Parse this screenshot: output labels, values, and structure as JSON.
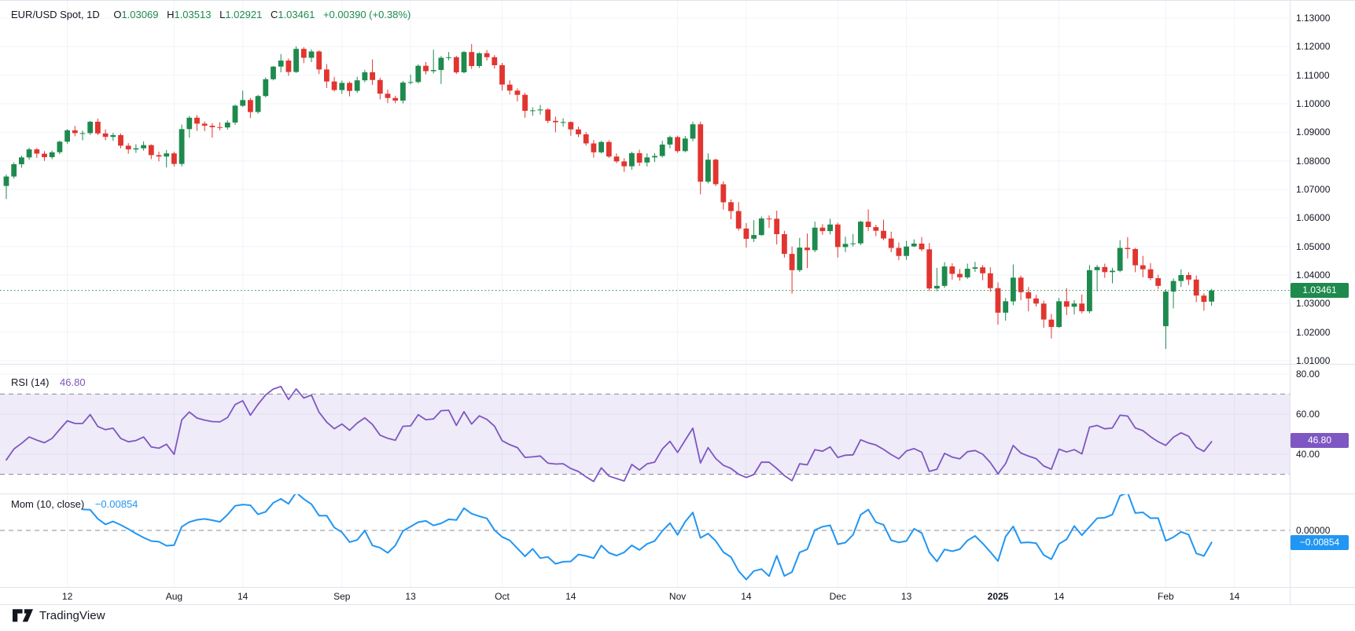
{
  "header": {
    "symbol": "EUR/USD Spot, 1D",
    "o_label": "O",
    "o": "1.03069",
    "h_label": "H",
    "h": "1.03513",
    "l_label": "L",
    "l": "1.02921",
    "c_label": "C",
    "c": "1.03461",
    "change": "+0.00390 (+0.38%)"
  },
  "rsi_legend": {
    "name": "RSI (14)",
    "value": "46.80"
  },
  "mom_legend": {
    "name": "Mom (10, close)",
    "value": "−0.00854"
  },
  "attribution": {
    "text": "TradingView"
  },
  "colors": {
    "up": "#1e8a4e",
    "down": "#e13530",
    "rsi": "#7e57c2",
    "mom": "#2196f3",
    "grid": "#f0f3fa",
    "separator": "#e0e3eb",
    "text": "#131722",
    "band_fill": "rgba(126,87,194,0.12)",
    "dash": "#8a8e99",
    "price_line": "#1e8a4e",
    "last_price_badge": "#1e8a4e",
    "rsi_badge": "#7e57c2",
    "mom_badge": "#2196f3"
  },
  "chart_data": {
    "type": "candlestick",
    "title": "EUR/USD Spot, 1D",
    "symbol": "EUR/USD",
    "interval": "1D",
    "ylim": [
      1.01,
      1.1305
    ],
    "grid": true,
    "last_price": {
      "text": "1.03461",
      "value": 1.03461
    },
    "price_ticks": [
      {
        "text": "1.13000",
        "value": 1.13
      },
      {
        "text": "1.12000",
        "value": 1.12
      },
      {
        "text": "1.11000",
        "value": 1.11
      },
      {
        "text": "1.10000",
        "value": 1.1
      },
      {
        "text": "1.09000",
        "value": 1.09
      },
      {
        "text": "1.08000",
        "value": 1.08
      },
      {
        "text": "1.07000",
        "value": 1.07
      },
      {
        "text": "1.06000",
        "value": 1.06
      },
      {
        "text": "1.05000",
        "value": 1.05
      },
      {
        "text": "1.04000",
        "value": 1.04
      },
      {
        "text": "1.03000",
        "value": 1.03
      },
      {
        "text": "1.02000",
        "value": 1.02
      },
      {
        "text": "1.01000",
        "value": 1.01
      }
    ],
    "time_ticks": [
      {
        "text": "12",
        "index": 8,
        "bold": false
      },
      {
        "text": "Aug",
        "index": 22,
        "bold": false
      },
      {
        "text": "14",
        "index": 31,
        "bold": false
      },
      {
        "text": "Sep",
        "index": 44,
        "bold": false
      },
      {
        "text": "13",
        "index": 53,
        "bold": false
      },
      {
        "text": "Oct",
        "index": 65,
        "bold": false
      },
      {
        "text": "14",
        "index": 74,
        "bold": false
      },
      {
        "text": "Nov",
        "index": 88,
        "bold": false
      },
      {
        "text": "14",
        "index": 97,
        "bold": false
      },
      {
        "text": "Dec",
        "index": 109,
        "bold": false
      },
      {
        "text": "13",
        "index": 118,
        "bold": false
      },
      {
        "text": "2025",
        "index": 130,
        "bold": true
      },
      {
        "text": "14",
        "index": 138,
        "bold": false
      },
      {
        "text": "Feb",
        "index": 152,
        "bold": false
      },
      {
        "text": "14",
        "index": 161,
        "bold": false
      }
    ],
    "indicators": [
      {
        "name": "RSI (14)",
        "type": "line",
        "period": 14,
        "last_value_text": "46.80",
        "last_value": 46.8,
        "color": "#7e57c2",
        "overbought": 70,
        "oversold": 30,
        "ticks": [
          {
            "text": "80.00",
            "value": 80
          },
          {
            "text": "60.00",
            "value": 60
          },
          {
            "text": "40.00",
            "value": 40
          }
        ]
      },
      {
        "name": "Mom (10, close)",
        "type": "line",
        "period": 10,
        "last_value_text": "−0.00854",
        "last_value": -0.00854,
        "color": "#2196f3",
        "ticks": [
          {
            "text": "0.00000",
            "value": 0
          }
        ]
      }
    ],
    "ohlc": [
      [
        1.0712,
        1.0752,
        1.0666,
        1.0745
      ],
      [
        1.0745,
        1.0795,
        1.0738,
        1.0788
      ],
      [
        1.0788,
        1.0818,
        1.0776,
        1.0812
      ],
      [
        1.0812,
        1.0846,
        1.0804,
        1.084
      ],
      [
        1.084,
        1.0845,
        1.081,
        1.0825
      ],
      [
        1.0825,
        1.0834,
        1.08,
        1.0813
      ],
      [
        1.0813,
        1.0836,
        1.0806,
        1.083
      ],
      [
        1.083,
        1.0871,
        1.0823,
        1.0867
      ],
      [
        1.0867,
        1.0911,
        1.086,
        1.0907
      ],
      [
        1.0907,
        1.0922,
        1.0886,
        1.0897
      ],
      [
        1.0897,
        1.0906,
        1.0872,
        1.0897
      ],
      [
        1.0897,
        1.094,
        1.0891,
        1.0937
      ],
      [
        1.0937,
        1.0948,
        1.089,
        1.0896
      ],
      [
        1.0896,
        1.091,
        1.0872,
        1.0884
      ],
      [
        1.0884,
        1.0898,
        1.087,
        1.089
      ],
      [
        1.089,
        1.0896,
        1.0844,
        1.0853
      ],
      [
        1.0853,
        1.0862,
        1.0825,
        1.084
      ],
      [
        1.084,
        1.0858,
        1.0828,
        1.0844
      ],
      [
        1.0844,
        1.0868,
        1.0836,
        1.0855
      ],
      [
        1.0855,
        1.0858,
        1.0806,
        1.082
      ],
      [
        1.082,
        1.0832,
        1.0798,
        1.0815
      ],
      [
        1.0815,
        1.0838,
        1.0777,
        1.0826
      ],
      [
        1.0826,
        1.0832,
        1.078,
        1.0789
      ],
      [
        1.0789,
        1.0927,
        1.078,
        1.0911
      ],
      [
        1.0911,
        1.0957,
        1.0881,
        1.0951
      ],
      [
        1.0951,
        1.096,
        1.0905,
        1.093
      ],
      [
        1.093,
        1.0938,
        1.0904,
        1.0923
      ],
      [
        1.0923,
        1.0932,
        1.0881,
        1.0918
      ],
      [
        1.0918,
        1.0935,
        1.0907,
        1.0917
      ],
      [
        1.0917,
        1.0942,
        1.0909,
        1.0934
      ],
      [
        1.0934,
        1.0997,
        1.0926,
        1.0993
      ],
      [
        1.0993,
        1.1046,
        1.0989,
        1.1013
      ],
      [
        1.1013,
        1.102,
        1.095,
        1.0971
      ],
      [
        1.0971,
        1.1031,
        1.0965,
        1.1027
      ],
      [
        1.1027,
        1.1092,
        1.1022,
        1.1086
      ],
      [
        1.1086,
        1.1132,
        1.1082,
        1.113
      ],
      [
        1.113,
        1.1174,
        1.111,
        1.1151
      ],
      [
        1.1151,
        1.1158,
        1.1098,
        1.1111
      ],
      [
        1.1111,
        1.1201,
        1.1108,
        1.1192
      ],
      [
        1.1192,
        1.1198,
        1.1142,
        1.1161
      ],
      [
        1.1161,
        1.119,
        1.1146,
        1.1183
      ],
      [
        1.1183,
        1.1187,
        1.1104,
        1.112
      ],
      [
        1.112,
        1.1139,
        1.1055,
        1.1078
      ],
      [
        1.1078,
        1.1094,
        1.1043,
        1.1048
      ],
      [
        1.1048,
        1.1081,
        1.1034,
        1.1073
      ],
      [
        1.1073,
        1.1078,
        1.1026,
        1.1045
      ],
      [
        1.1045,
        1.1094,
        1.1038,
        1.1082
      ],
      [
        1.1082,
        1.1119,
        1.1075,
        1.111
      ],
      [
        1.111,
        1.1155,
        1.1066,
        1.1083
      ],
      [
        1.1083,
        1.1091,
        1.1015,
        1.1035
      ],
      [
        1.1035,
        1.105,
        1.1002,
        1.102
      ],
      [
        1.102,
        1.1028,
        1.1002,
        1.1011
      ],
      [
        1.1011,
        1.108,
        1.1001,
        1.1074
      ],
      [
        1.1074,
        1.1102,
        1.1068,
        1.1076
      ],
      [
        1.1076,
        1.1138,
        1.1071,
        1.1133
      ],
      [
        1.1133,
        1.1146,
        1.1103,
        1.1114
      ],
      [
        1.1114,
        1.1189,
        1.1106,
        1.1118
      ],
      [
        1.1118,
        1.1167,
        1.1069,
        1.1161
      ],
      [
        1.1161,
        1.1181,
        1.1152,
        1.1163
      ],
      [
        1.1163,
        1.1168,
        1.1104,
        1.111
      ],
      [
        1.111,
        1.1185,
        1.1106,
        1.1181
      ],
      [
        1.1181,
        1.1209,
        1.1122,
        1.1132
      ],
      [
        1.1132,
        1.118,
        1.1125,
        1.1177
      ],
      [
        1.1177,
        1.1188,
        1.1151,
        1.1163
      ],
      [
        1.1163,
        1.117,
        1.1123,
        1.1135
      ],
      [
        1.1135,
        1.1143,
        1.1046,
        1.1067
      ],
      [
        1.1067,
        1.1082,
        1.1032,
        1.1046
      ],
      [
        1.1046,
        1.1054,
        1.1008,
        1.1031
      ],
      [
        1.1031,
        1.1038,
        1.0951,
        1.0975
      ],
      [
        1.0975,
        1.0987,
        1.0958,
        1.0977
      ],
      [
        1.0977,
        1.0996,
        1.0962,
        1.098
      ],
      [
        1.098,
        1.0984,
        1.0932,
        1.094
      ],
      [
        1.094,
        1.0955,
        1.09,
        1.0935
      ],
      [
        1.0935,
        1.0949,
        1.092,
        1.0936
      ],
      [
        1.0936,
        1.0938,
        1.0888,
        1.091
      ],
      [
        1.091,
        1.092,
        1.0883,
        1.0893
      ],
      [
        1.0893,
        1.0901,
        1.0853,
        1.0861
      ],
      [
        1.0861,
        1.0873,
        1.0811,
        1.083
      ],
      [
        1.083,
        1.087,
        1.0826,
        1.0866
      ],
      [
        1.0866,
        1.0872,
        1.081,
        1.0815
      ],
      [
        1.0815,
        1.0826,
        1.0792,
        1.0798
      ],
      [
        1.0798,
        1.0809,
        1.0761,
        1.0781
      ],
      [
        1.0781,
        1.0832,
        1.0769,
        1.0827
      ],
      [
        1.0827,
        1.0839,
        1.0782,
        1.0794
      ],
      [
        1.0794,
        1.0826,
        1.078,
        1.0812
      ],
      [
        1.0812,
        1.0827,
        1.0796,
        1.0817
      ],
      [
        1.0817,
        1.087,
        1.0812,
        1.0857
      ],
      [
        1.0857,
        1.0888,
        1.0844,
        1.0883
      ],
      [
        1.0883,
        1.0888,
        1.0828,
        1.0834
      ],
      [
        1.0834,
        1.0887,
        1.083,
        1.0878
      ],
      [
        1.0878,
        1.0937,
        1.0869,
        1.0928
      ],
      [
        1.0928,
        1.0937,
        1.0683,
        1.0727
      ],
      [
        1.0727,
        1.0826,
        1.0721,
        1.0804
      ],
      [
        1.0804,
        1.0808,
        1.0711,
        1.0718
      ],
      [
        1.0718,
        1.0728,
        1.0629,
        1.0655
      ],
      [
        1.0655,
        1.0665,
        1.0595,
        1.0624
      ],
      [
        1.0624,
        1.0655,
        1.0555,
        1.0563
      ],
      [
        1.0563,
        1.0582,
        1.0496,
        1.0527
      ],
      [
        1.0527,
        1.0592,
        1.0516,
        1.054
      ],
      [
        1.054,
        1.0605,
        1.0538,
        1.0598
      ],
      [
        1.0598,
        1.0609,
        1.0565,
        1.0597
      ],
      [
        1.0597,
        1.0625,
        1.0507,
        1.0543
      ],
      [
        1.0543,
        1.0555,
        1.0461,
        1.0474
      ],
      [
        1.0474,
        1.05,
        1.0335,
        1.0417
      ],
      [
        1.0417,
        1.053,
        1.0411,
        1.0496
      ],
      [
        1.0496,
        1.0545,
        1.0424,
        1.0487
      ],
      [
        1.0487,
        1.0587,
        1.048,
        1.0566
      ],
      [
        1.0566,
        1.0578,
        1.0541,
        1.0554
      ],
      [
        1.0554,
        1.0597,
        1.0542,
        1.0577
      ],
      [
        1.0577,
        1.0583,
        1.0461,
        1.0498
      ],
      [
        1.0498,
        1.0534,
        1.048,
        1.0509
      ],
      [
        1.0509,
        1.0544,
        1.05,
        1.0511
      ],
      [
        1.0511,
        1.059,
        1.0505,
        1.0587
      ],
      [
        1.0587,
        1.063,
        1.0554,
        1.0568
      ],
      [
        1.0568,
        1.0576,
        1.0536,
        1.0555
      ],
      [
        1.0555,
        1.0594,
        1.0522,
        1.0528
      ],
      [
        1.0528,
        1.0552,
        1.048,
        1.0495
      ],
      [
        1.0495,
        1.0514,
        1.0452,
        1.0467
      ],
      [
        1.0467,
        1.052,
        1.0453,
        1.05
      ],
      [
        1.05,
        1.0525,
        1.0498,
        1.051
      ],
      [
        1.051,
        1.0533,
        1.0483,
        1.049
      ],
      [
        1.049,
        1.0512,
        1.0344,
        1.0353
      ],
      [
        1.0353,
        1.0425,
        1.0343,
        1.0362
      ],
      [
        1.0362,
        1.0445,
        1.0355,
        1.043
      ],
      [
        1.043,
        1.0441,
        1.0384,
        1.0404
      ],
      [
        1.0404,
        1.0421,
        1.038,
        1.0392
      ],
      [
        1.0392,
        1.044,
        1.0386,
        1.0422
      ],
      [
        1.0422,
        1.0446,
        1.0411,
        1.0427
      ],
      [
        1.0427,
        1.0435,
        1.0382,
        1.0406
      ],
      [
        1.0406,
        1.0427,
        1.0341,
        1.0354
      ],
      [
        1.0354,
        1.0374,
        1.0226,
        1.0268
      ],
      [
        1.0268,
        1.032,
        1.024,
        1.0308
      ],
      [
        1.0308,
        1.0437,
        1.0294,
        1.0391
      ],
      [
        1.0391,
        1.0398,
        1.0312,
        1.034
      ],
      [
        1.034,
        1.0358,
        1.0273,
        1.0318
      ],
      [
        1.0318,
        1.033,
        1.029,
        1.03
      ],
      [
        1.03,
        1.031,
        1.0215,
        1.0244
      ],
      [
        1.0244,
        1.0264,
        1.0178,
        1.0218
      ],
      [
        1.0218,
        1.032,
        1.0215,
        1.0308
      ],
      [
        1.0308,
        1.0354,
        1.026,
        1.0289
      ],
      [
        1.0289,
        1.0312,
        1.0262,
        1.03
      ],
      [
        1.03,
        1.0332,
        1.0266,
        1.0273
      ],
      [
        1.0273,
        1.0435,
        1.0266,
        1.0417
      ],
      [
        1.0417,
        1.0435,
        1.0343,
        1.0428
      ],
      [
        1.0428,
        1.044,
        1.039,
        1.041
      ],
      [
        1.041,
        1.0425,
        1.0371,
        1.0415
      ],
      [
        1.0415,
        1.0522,
        1.041,
        1.0495
      ],
      [
        1.0495,
        1.0533,
        1.0458,
        1.0491
      ],
      [
        1.0491,
        1.0495,
        1.041,
        1.0434
      ],
      [
        1.0434,
        1.0467,
        1.0392,
        1.042
      ],
      [
        1.042,
        1.0442,
        1.0382,
        1.0389
      ],
      [
        1.0389,
        1.0401,
        1.0351,
        1.0362
      ],
      [
        1.0221,
        1.035,
        1.0141,
        1.0342
      ],
      [
        1.0342,
        1.0388,
        1.0283,
        1.0379
      ],
      [
        1.0379,
        1.042,
        1.0358,
        1.04
      ],
      [
        1.04,
        1.041,
        1.0365,
        1.0384
      ],
      [
        1.0384,
        1.0398,
        1.0305,
        1.0328
      ],
      [
        1.0328,
        1.0336,
        1.0275,
        1.0306
      ],
      [
        1.03069,
        1.03513,
        1.02921,
        1.03461
      ]
    ]
  }
}
